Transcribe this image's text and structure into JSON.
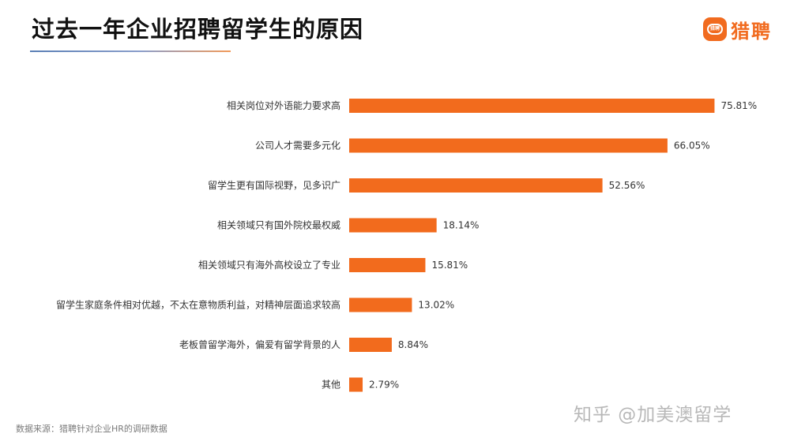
{
  "header": {
    "title": "过去一年企业招聘留学生的原因"
  },
  "brand": {
    "icon_text": "猎聘",
    "name": "猎聘",
    "icon": "liepin-logo-icon",
    "color": "#f16b1f"
  },
  "chart_data": {
    "type": "bar",
    "orientation": "horizontal",
    "categories": [
      "相关岗位对外语能力要求高",
      "公司人才需要多元化",
      "留学生更有国际视野，见多识广",
      "相关领域只有国外院校最权威",
      "相关领域只有海外高校设立了专业",
      "留学生家庭条件相对优越，不太在意物质利益，对精神层面追求较高",
      "老板曾留学海外，偏爱有留学背景的人",
      "其他"
    ],
    "values": [
      75.81,
      66.05,
      52.56,
      18.14,
      15.81,
      13.02,
      8.84,
      2.79
    ],
    "value_labels": [
      "75.81%",
      "66.05%",
      "52.56%",
      "18.14%",
      "15.81%",
      "13.02%",
      "8.84%",
      "2.79%"
    ],
    "bar_color": "#f26b1d",
    "title": "过去一年企业招聘留学生的原因",
    "xlabel": "",
    "ylabel": "",
    "xlim": [
      0,
      100
    ],
    "grid": false,
    "legend": "none"
  },
  "footer": {
    "source": "数据来源：猎聘针对企业HR的调研数据",
    "watermark": "知乎 @加美澳留学"
  }
}
